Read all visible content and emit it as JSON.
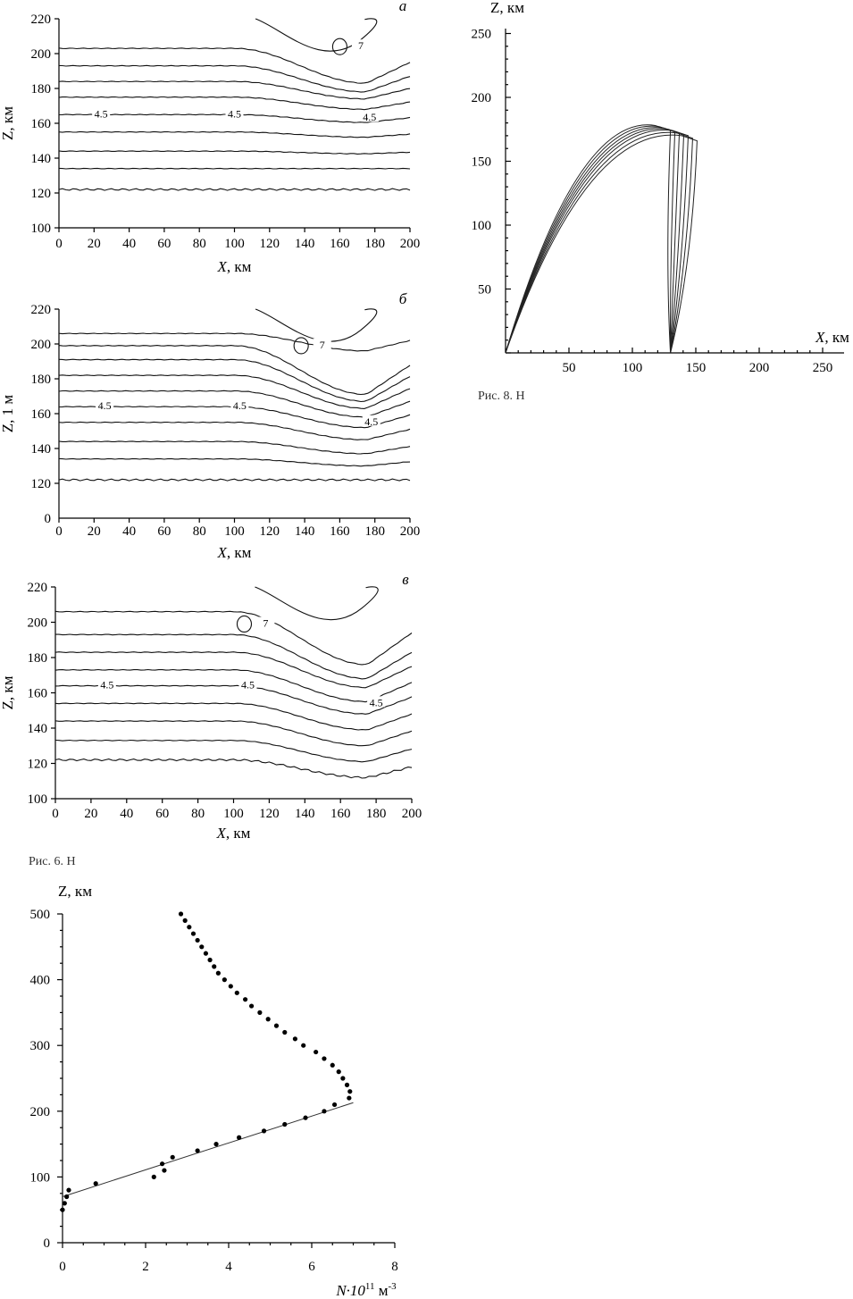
{
  "chart_data": [
    {
      "id": "a",
      "type": "contour",
      "panel_label": "а",
      "xlabel_var": "X",
      "xlabel_unit": ", км",
      "ylabel": "Z, км",
      "xlim": [
        0,
        200
      ],
      "ylim": [
        100,
        220
      ],
      "xticks": [
        "0",
        "20",
        "40",
        "60",
        "80",
        "100",
        "120",
        "140",
        "160",
        "180",
        "200"
      ],
      "yticks": [
        "100",
        "120",
        "140",
        "160",
        "180",
        "200",
        "220"
      ],
      "contour_labels": [
        {
          "text": "4.5",
          "x": 24,
          "z": 165
        },
        {
          "text": "4.5",
          "x": 100,
          "z": 165
        },
        {
          "text": "4.5",
          "x": 177,
          "z": 163
        },
        {
          "text": "7",
          "x": 172,
          "z": 204
        }
      ],
      "levels_z": [
        122,
        134,
        144,
        155,
        165,
        175,
        184,
        193,
        203
      ],
      "dip_amplitude": [
        0,
        0,
        1.5,
        3,
        4.5,
        7,
        10,
        15,
        20
      ]
    },
    {
      "id": "b",
      "type": "contour",
      "panel_label": "б",
      "xlabel_var": "X",
      "xlabel_unit": ", км",
      "ylabel": "Z, 1 м",
      "xlim": [
        0,
        200
      ],
      "ylim": [
        100,
        220
      ],
      "yaxis_bottom_label": "0",
      "xticks": [
        "0",
        "20",
        "40",
        "60",
        "80",
        "100",
        "120",
        "140",
        "160",
        "180",
        "200"
      ],
      "yticks": [
        "120",
        "140",
        "160",
        "180",
        "200",
        "220"
      ],
      "contour_labels": [
        {
          "text": "4.5",
          "x": 26,
          "z": 164
        },
        {
          "text": "4.5",
          "x": 103,
          "z": 164
        },
        {
          "text": "4.5",
          "x": 178,
          "z": 155
        },
        {
          "text": "7",
          "x": 150,
          "z": 199
        }
      ],
      "levels_z": [
        122,
        134,
        144,
        155,
        164,
        173,
        182,
        191,
        199,
        206
      ],
      "dip_amplitude": [
        0,
        4,
        7,
        10,
        12,
        15,
        19,
        24,
        28,
        10
      ]
    },
    {
      "id": "v",
      "type": "contour",
      "panel_label": "в",
      "xlabel_var": "X",
      "xlabel_unit": ", км",
      "ylabel": "Z, км",
      "xlim": [
        0,
        200
      ],
      "ylim": [
        100,
        220
      ],
      "xticks": [
        "0",
        "20",
        "40",
        "60",
        "80",
        "100",
        "120",
        "140",
        "160",
        "180",
        "200"
      ],
      "yticks": [
        "100",
        "120",
        "140",
        "160",
        "180",
        "200",
        "220"
      ],
      "contour_labels": [
        {
          "text": "4.5",
          "x": 29,
          "z": 164
        },
        {
          "text": "4.5",
          "x": 108,
          "z": 164
        },
        {
          "text": "4.5",
          "x": 180,
          "z": 154
        },
        {
          "text": "7",
          "x": 118,
          "z": 199
        }
      ],
      "levels_z": [
        122,
        133,
        144,
        154,
        164,
        173,
        183,
        193,
        206
      ],
      "dip_amplitude": [
        10,
        12,
        14,
        15,
        16,
        18,
        20,
        25,
        30
      ]
    },
    {
      "id": "rays",
      "type": "line",
      "xlabel_var": "X",
      "xlabel_unit": ", км",
      "ylabel": "Z, км",
      "xlim": [
        0,
        250
      ],
      "ylim": [
        0,
        250
      ],
      "xticks": [
        "50",
        "100",
        "150",
        "200",
        "250"
      ],
      "yticks": [
        "50",
        "100",
        "150",
        "200",
        "250"
      ],
      "series": [
        {
          "apex_x": 128,
          "apex_z": 178,
          "end_x": 128
        },
        {
          "apex_x": 133,
          "apex_z": 177,
          "end_x": 133
        },
        {
          "apex_x": 138,
          "apex_z": 176,
          "end_x": 138
        },
        {
          "apex_x": 143,
          "apex_z": 175,
          "end_x": 143
        },
        {
          "apex_x": 148,
          "apex_z": 174,
          "end_x": 148
        },
        {
          "apex_x": 153,
          "apex_z": 172,
          "end_x": 153
        },
        {
          "apex_x": 158,
          "apex_z": 170,
          "end_x": 158
        }
      ],
      "launch_x": 0,
      "receiver_x": 130
    },
    {
      "id": "profile",
      "type": "scatter",
      "ylabel": "Z, км",
      "xlabel_base": "N·10",
      "xlabel_exp": "11",
      "xlabel_unit": " м",
      "xlabel_unit_exp": "-3",
      "xlim": [
        0,
        8
      ],
      "ylim": [
        0,
        500
      ],
      "xticks": [
        "0",
        "2",
        "4",
        "6",
        "8"
      ],
      "yticks": [
        "0",
        "100",
        "200",
        "300",
        "400",
        "500"
      ],
      "points": [
        [
          2.85,
          500
        ],
        [
          2.95,
          490
        ],
        [
          3.05,
          480
        ],
        [
          3.15,
          470
        ],
        [
          3.25,
          460
        ],
        [
          3.35,
          450
        ],
        [
          3.45,
          440
        ],
        [
          3.55,
          430
        ],
        [
          3.65,
          420
        ],
        [
          3.75,
          410
        ],
        [
          3.9,
          400
        ],
        [
          4.05,
          390
        ],
        [
          4.2,
          380
        ],
        [
          4.4,
          370
        ],
        [
          4.55,
          360
        ],
        [
          4.75,
          350
        ],
        [
          4.95,
          340
        ],
        [
          5.15,
          330
        ],
        [
          5.35,
          320
        ],
        [
          5.6,
          310
        ],
        [
          5.8,
          300
        ],
        [
          6.1,
          290
        ],
        [
          6.3,
          280
        ],
        [
          6.5,
          270
        ],
        [
          6.65,
          260
        ],
        [
          6.75,
          250
        ],
        [
          6.85,
          240
        ],
        [
          6.92,
          230
        ],
        [
          6.9,
          220
        ],
        [
          6.55,
          210
        ],
        [
          6.3,
          200
        ],
        [
          5.85,
          190
        ],
        [
          5.35,
          180
        ],
        [
          4.85,
          170
        ],
        [
          4.25,
          160
        ],
        [
          3.7,
          150
        ],
        [
          3.25,
          140
        ],
        [
          2.65,
          130
        ],
        [
          2.4,
          120
        ],
        [
          2.45,
          110
        ],
        [
          2.2,
          100
        ],
        [
          0.8,
          90
        ],
        [
          0.15,
          80
        ],
        [
          0.1,
          70
        ],
        [
          0.05,
          60
        ],
        [
          0.0,
          50
        ]
      ],
      "fit_line": [
        [
          0,
          70
        ],
        [
          7.0,
          213
        ]
      ]
    }
  ],
  "captions": {
    "fig_rays": "Рис. 8. Н",
    "fig_contours": "Рис. 6. Н"
  }
}
